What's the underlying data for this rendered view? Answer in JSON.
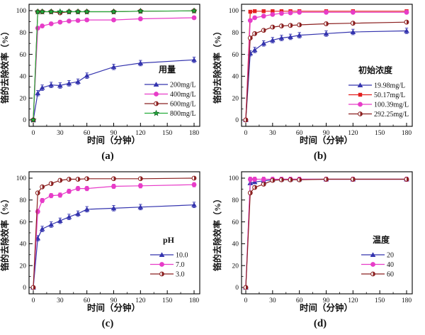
{
  "figure": {
    "background": "#ffffff",
    "description": "2x2 grid of chromium removal efficiency line charts"
  },
  "chart_data": [
    {
      "id": "a",
      "type": "line",
      "caption": "(a)",
      "xlabel": "时间（分钟）",
      "ylabel": "铬的去除效率（%）",
      "x": [
        0,
        5,
        10,
        20,
        30,
        40,
        50,
        60,
        90,
        120,
        180
      ],
      "xticks": [
        0,
        30,
        60,
        90,
        120,
        150,
        180
      ],
      "yticks": [
        0,
        20,
        40,
        60,
        80,
        100
      ],
      "xlim": [
        0,
        180
      ],
      "ylim": [
        0,
        100
      ],
      "grid": false,
      "legend_title": "用量",
      "legend_position": "lower-right",
      "series": [
        {
          "name": "200mg/L",
          "color": "#3434ae",
          "marker": "triangle",
          "err": 2.5,
          "values": [
            0,
            24.5,
            29.5,
            32,
            31.5,
            33.5,
            35,
            40.5,
            48.5,
            52,
            55
          ]
        },
        {
          "name": "400mg/L",
          "color": "#e73cc8",
          "marker": "circle",
          "err": 1.5,
          "values": [
            0,
            84,
            86,
            88,
            89.5,
            90.5,
            91,
            91.5,
            91.5,
            92.5,
            93.5
          ]
        },
        {
          "name": "600mg/L",
          "color": "#8b2020",
          "marker": "halfcircle",
          "err": 0.8,
          "values": [
            0,
            99,
            99,
            99,
            98,
            99,
            99,
            99,
            99,
            99.5,
            99.8
          ]
        },
        {
          "name": "800mg/L",
          "color": "#25ad3c",
          "marker": "star",
          "err": 0.8,
          "values": [
            0,
            99,
            99,
            99,
            99,
            99,
            99,
            99,
            99,
            99.5,
            99.8
          ]
        }
      ]
    },
    {
      "id": "b",
      "type": "line",
      "caption": "(b)",
      "xlabel": "时间（分钟）",
      "ylabel": "铬的去除效率（%）",
      "x": [
        0,
        5,
        10,
        20,
        30,
        40,
        50,
        60,
        90,
        120,
        180
      ],
      "xticks": [
        0,
        30,
        60,
        90,
        120,
        150,
        180
      ],
      "yticks": [
        0,
        20,
        40,
        60,
        80,
        100
      ],
      "xlim": [
        0,
        180
      ],
      "ylim": [
        0,
        100
      ],
      "grid": false,
      "legend_title": "初始浓度",
      "legend_position": "lower-right",
      "series": [
        {
          "name": "19.98mg/L",
          "color": "#3434ae",
          "marker": "triangle",
          "err": 2.5,
          "values": [
            0,
            61,
            64,
            70,
            73,
            75,
            76,
            77.5,
            79,
            80.5,
            81.5
          ]
        },
        {
          "name": "50.17mg/L",
          "color": "#e31f1f",
          "marker": "square",
          "err": 1.2,
          "values": [
            0,
            99,
            99.5,
            99.5,
            99.5,
            99.5,
            99.5,
            99.5,
            99.5,
            99.5,
            99.5
          ]
        },
        {
          "name": "100.39mg/L",
          "color": "#e73cc8",
          "marker": "circle",
          "err": 1.5,
          "values": [
            0,
            91,
            93.5,
            95,
            96.5,
            97.5,
            98,
            98.5,
            98.5,
            98.5,
            98.5
          ]
        },
        {
          "name": "292.25mg/L",
          "color": "#8b2020",
          "marker": "halfcircle",
          "err": 1.5,
          "values": [
            0,
            75,
            79,
            82,
            85,
            86,
            86.5,
            87,
            88,
            88.5,
            89.5
          ]
        }
      ]
    },
    {
      "id": "c",
      "type": "line",
      "caption": "(c)",
      "xlabel": "时间（分钟）",
      "ylabel": "铬的去除效率（%）",
      "x": [
        0,
        5,
        10,
        20,
        30,
        40,
        50,
        60,
        90,
        120,
        180
      ],
      "xticks": [
        0,
        30,
        60,
        90,
        120,
        150,
        180
      ],
      "yticks": [
        0,
        20,
        40,
        60,
        80,
        100
      ],
      "xlim": [
        0,
        180
      ],
      "ylim": [
        0,
        100
      ],
      "grid": false,
      "legend_title": "pH",
      "legend_position": "lower-right",
      "series": [
        {
          "name": "10.0",
          "color": "#3434ae",
          "marker": "triangle",
          "err": 2.5,
          "values": [
            0,
            45,
            53.5,
            57.5,
            61,
            64.5,
            67.5,
            71.5,
            72.5,
            73.5,
            75.5
          ]
        },
        {
          "name": "7.0",
          "color": "#e73cc8",
          "marker": "circle",
          "err": 2,
          "values": [
            0,
            69.5,
            79.5,
            84,
            84.5,
            88,
            90.5,
            90.5,
            92.5,
            93,
            94
          ]
        },
        {
          "name": "3.0",
          "color": "#8b2020",
          "marker": "halfcircle",
          "err": 1,
          "values": [
            0,
            86.5,
            92,
            95,
            98,
            99,
            99,
            99.5,
            99.5,
            99.5,
            100
          ]
        }
      ]
    },
    {
      "id": "d",
      "type": "line",
      "caption": "(d)",
      "xlabel": "时间（分钟）",
      "ylabel": "铬的去除效率（%）",
      "x": [
        0,
        5,
        10,
        20,
        30,
        40,
        50,
        60,
        90,
        120,
        180
      ],
      "xticks": [
        0,
        30,
        60,
        90,
        120,
        150,
        180
      ],
      "yticks": [
        0,
        20,
        40,
        60,
        80,
        100
      ],
      "xlim": [
        0,
        180
      ],
      "ylim": [
        0,
        100
      ],
      "grid": false,
      "legend_title": "温度",
      "legend_position": "lower-right",
      "series": [
        {
          "name": "20",
          "color": "#3434ae",
          "marker": "triangle",
          "err": 1.5,
          "values": [
            0,
            95.5,
            96.5,
            97.5,
            98.5,
            99,
            99,
            99,
            99,
            99,
            99
          ]
        },
        {
          "name": "40",
          "color": "#e73cc8",
          "marker": "circle",
          "err": 2,
          "values": [
            0,
            99,
            99,
            99,
            99,
            99,
            99,
            99,
            99,
            99,
            99
          ]
        },
        {
          "name": "60",
          "color": "#8b2020",
          "marker": "halfcircle",
          "err": 1.5,
          "values": [
            0,
            86.5,
            91.5,
            94.5,
            98,
            98.5,
            98.5,
            98.5,
            99,
            99,
            99
          ]
        }
      ]
    }
  ]
}
